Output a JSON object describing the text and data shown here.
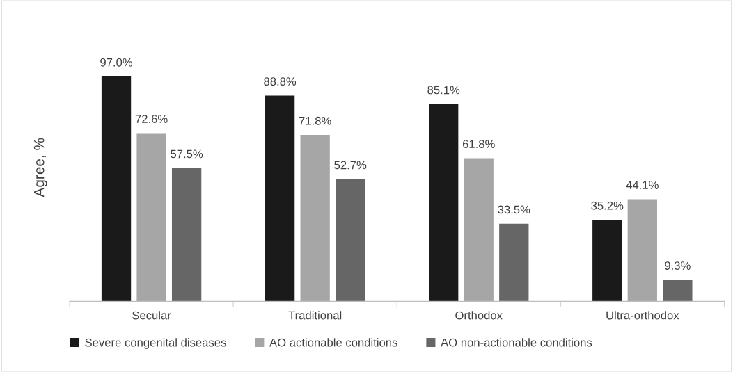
{
  "chart_data": {
    "type": "bar",
    "ylabel": "Agree, %",
    "categories": [
      "Secular",
      "Traditional",
      "Orthodox",
      "Ultra-orthodox"
    ],
    "series": [
      {
        "name": "Severe congenital diseases",
        "color": "#1a1a1a",
        "values": [
          97.0,
          88.8,
          85.1,
          35.2
        ],
        "value_labels": [
          "97.0%",
          "88.8%",
          "85.1%",
          "35.2%"
        ]
      },
      {
        "name": "AO actionable conditions",
        "color": "#a6a6a6",
        "values": [
          72.6,
          71.8,
          61.8,
          44.1
        ],
        "value_labels": [
          "72.6%",
          "71.8%",
          "61.8%",
          "44.1%"
        ]
      },
      {
        "name": "AO non-actionable conditions",
        "color": "#666666",
        "values": [
          57.5,
          52.7,
          33.5,
          9.3
        ],
        "value_labels": [
          "57.5%",
          "52.7%",
          "33.5%",
          "9.3%"
        ]
      }
    ],
    "legend": "bottom"
  }
}
